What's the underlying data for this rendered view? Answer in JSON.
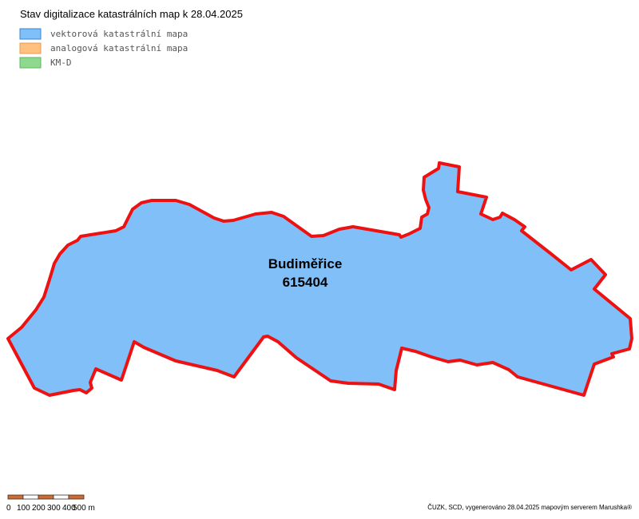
{
  "header": {
    "title": "Stav digitalizace katastrálních map k 28.04.2025"
  },
  "legend": [
    {
      "label": "vektorová katastrální mapa",
      "color": "#80bff8",
      "border": "#3a85d0"
    },
    {
      "label": "analogová katastrální mapa",
      "color": "#ffc080",
      "border": "#e89a50"
    },
    {
      "label": "KM-D",
      "color": "#90d890",
      "border": "#5cb85c"
    }
  ],
  "area": {
    "name": "Budiměřice",
    "code": "615404"
  },
  "scale_bar": {
    "labels": [
      "0",
      "100",
      "200",
      "300",
      "400",
      "500 m"
    ]
  },
  "footer": {
    "credit": "ČUZK, SCD, vygenerováno 28.04.2025 mapovým serverem Marushka®"
  }
}
